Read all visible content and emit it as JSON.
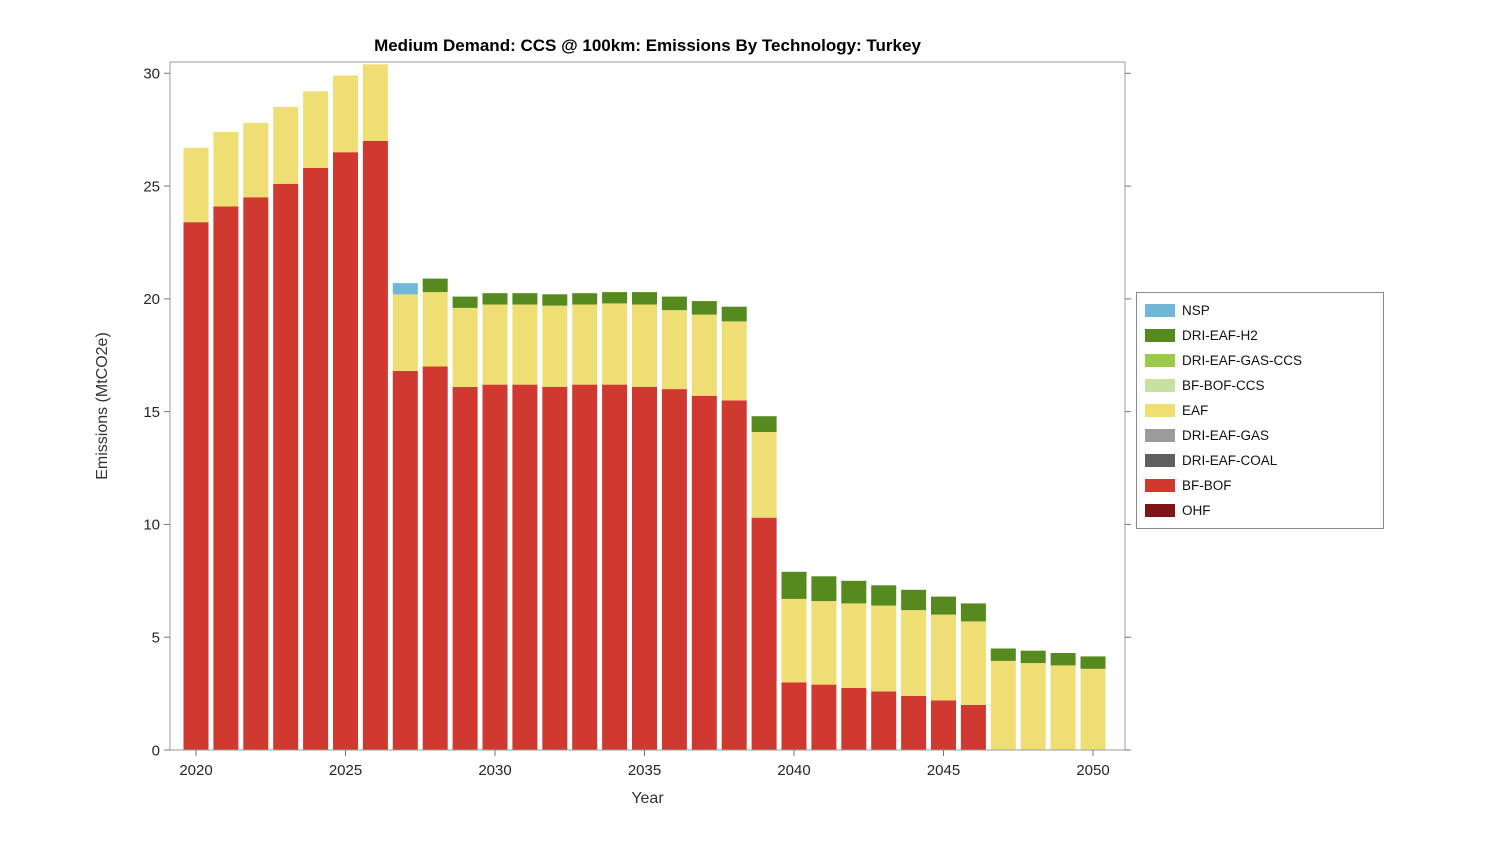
{
  "chart_data": {
    "type": "bar",
    "stacked": true,
    "title": "Medium Demand: CCS @ 100km: Emissions By Technology: Turkey",
    "xlabel": "Year",
    "ylabel": "Emissions (MtCO2e)",
    "ylim": [
      0,
      30.5
    ],
    "yticks": [
      0,
      5,
      10,
      15,
      20,
      25,
      30
    ],
    "xticks": [
      2020,
      2025,
      2030,
      2035,
      2040,
      2045,
      2050
    ],
    "grid": false,
    "legend_position": "right-outside",
    "categories": [
      2020,
      2021,
      2022,
      2023,
      2024,
      2025,
      2026,
      2027,
      2028,
      2029,
      2030,
      2031,
      2032,
      2033,
      2034,
      2035,
      2036,
      2037,
      2038,
      2039,
      2040,
      2041,
      2042,
      2043,
      2044,
      2045,
      2046,
      2047,
      2048,
      2049,
      2050
    ],
    "series": [
      {
        "name": "OHF",
        "color": "#7e1416",
        "values": [
          0,
          0,
          0,
          0,
          0,
          0,
          0,
          0,
          0,
          0,
          0,
          0,
          0,
          0,
          0,
          0,
          0,
          0,
          0,
          0,
          0,
          0,
          0,
          0,
          0,
          0,
          0,
          0,
          0,
          0,
          0
        ]
      },
      {
        "name": "BF-BOF",
        "color": "#d0392f",
        "values": [
          23.4,
          24.1,
          24.5,
          25.1,
          25.8,
          26.5,
          27.0,
          16.8,
          17.0,
          16.1,
          16.2,
          16.2,
          16.1,
          16.2,
          16.2,
          16.1,
          16.0,
          15.7,
          15.5,
          10.3,
          3.0,
          2.9,
          2.75,
          2.6,
          2.4,
          2.2,
          2.0,
          0,
          0,
          0,
          0
        ]
      },
      {
        "name": "DRI-EAF-COAL",
        "color": "#5f5f5f",
        "values": [
          0,
          0,
          0,
          0,
          0,
          0,
          0,
          0,
          0,
          0,
          0,
          0,
          0,
          0,
          0,
          0,
          0,
          0,
          0,
          0,
          0,
          0,
          0,
          0,
          0,
          0,
          0,
          0,
          0,
          0,
          0
        ]
      },
      {
        "name": "DRI-EAF-GAS",
        "color": "#9b9b9b",
        "values": [
          0,
          0,
          0,
          0,
          0,
          0,
          0,
          0,
          0,
          0,
          0,
          0,
          0,
          0,
          0,
          0,
          0,
          0,
          0,
          0,
          0,
          0,
          0,
          0,
          0,
          0,
          0,
          0,
          0,
          0,
          0
        ]
      },
      {
        "name": "EAF",
        "color": "#efde74",
        "values": [
          3.3,
          3.3,
          3.3,
          3.4,
          3.4,
          3.4,
          3.4,
          3.4,
          3.3,
          3.5,
          3.55,
          3.55,
          3.6,
          3.55,
          3.6,
          3.65,
          3.5,
          3.6,
          3.5,
          3.8,
          3.7,
          3.7,
          3.75,
          3.8,
          3.8,
          3.8,
          3.7,
          3.95,
          3.85,
          3.75,
          3.6
        ]
      },
      {
        "name": "BF-BOF-CCS",
        "color": "#c8e0a0",
        "values": [
          0,
          0,
          0,
          0,
          0,
          0,
          0,
          0,
          0,
          0,
          0,
          0,
          0,
          0,
          0,
          0,
          0,
          0,
          0,
          0,
          0,
          0,
          0,
          0,
          0,
          0,
          0,
          0,
          0,
          0,
          0
        ]
      },
      {
        "name": "DRI-EAF-GAS-CCS",
        "color": "#9dc94c",
        "values": [
          0,
          0,
          0,
          0,
          0,
          0,
          0,
          0,
          0,
          0,
          0,
          0,
          0,
          0,
          0,
          0,
          0,
          0,
          0,
          0,
          0,
          0,
          0,
          0,
          0,
          0,
          0,
          0,
          0,
          0,
          0
        ]
      },
      {
        "name": "DRI-EAF-H2",
        "color": "#568a1e",
        "values": [
          0,
          0,
          0,
          0,
          0,
          0,
          0,
          0,
          0.6,
          0.5,
          0.5,
          0.5,
          0.5,
          0.5,
          0.5,
          0.55,
          0.6,
          0.6,
          0.65,
          0.7,
          1.2,
          1.1,
          1.0,
          0.9,
          0.9,
          0.8,
          0.8,
          0.55,
          0.55,
          0.55,
          0.55
        ]
      },
      {
        "name": "NSP",
        "color": "#70b8d6",
        "values": [
          0,
          0,
          0,
          0,
          0,
          0,
          0,
          0.5,
          0,
          0,
          0,
          0,
          0,
          0,
          0,
          0,
          0,
          0,
          0,
          0,
          0,
          0,
          0,
          0,
          0,
          0,
          0,
          0,
          0,
          0,
          0
        ]
      }
    ],
    "legend": {
      "items": [
        {
          "label": "NSP",
          "color": "#70b8d6"
        },
        {
          "label": "DRI-EAF-H2",
          "color": "#568a1e"
        },
        {
          "label": "DRI-EAF-GAS-CCS",
          "color": "#9dc94c"
        },
        {
          "label": "BF-BOF-CCS",
          "color": "#c8e0a0"
        },
        {
          "label": "EAF",
          "color": "#efde74"
        },
        {
          "label": "DRI-EAF-GAS",
          "color": "#9b9b9b"
        },
        {
          "label": "DRI-EAF-COAL",
          "color": "#5f5f5f"
        },
        {
          "label": "BF-BOF",
          "color": "#d0392f"
        },
        {
          "label": "OHF",
          "color": "#7e1416"
        }
      ]
    }
  }
}
